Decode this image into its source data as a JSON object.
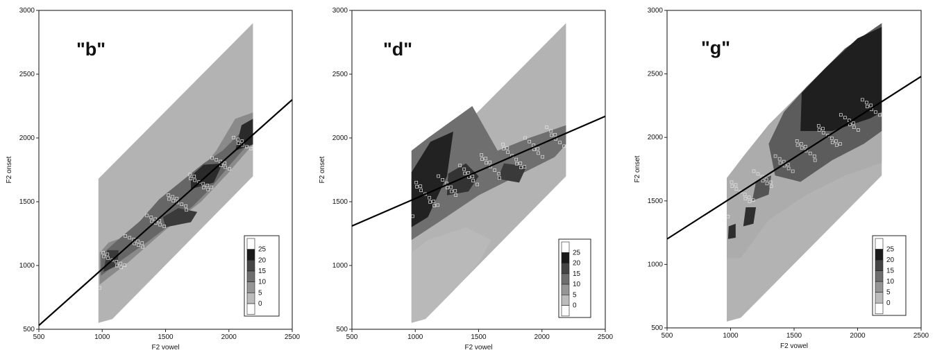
{
  "chart_data": [
    {
      "type": "contour",
      "title": "\"b\"",
      "xlabel": "F2 vowel",
      "ylabel": "F2 onset",
      "xlim": [
        500,
        2500
      ],
      "ylim": [
        500,
        3000
      ],
      "xticks": [
        "500",
        "1000",
        "1500",
        "2000",
        "2500"
      ],
      "yticks": [
        "500",
        "1000",
        "1500",
        "2000",
        "2500",
        "3000"
      ],
      "legend": {
        "position": "bottom-right",
        "levels": [
          "25",
          "20",
          "15",
          "10",
          "5",
          "0"
        ]
      },
      "regression_line": {
        "x": [
          500,
          2500
        ],
        "y": [
          530,
          2300
        ]
      }
    },
    {
      "type": "contour",
      "title": "\"d\"",
      "xlabel": "F2 vowel",
      "ylabel": "F2 onset",
      "xlim": [
        500,
        2500
      ],
      "ylim": [
        500,
        3000
      ],
      "xticks": [
        "500",
        "1000",
        "1500",
        "2000",
        "2500"
      ],
      "yticks": [
        "500",
        "1000",
        "1500",
        "2000",
        "2500",
        "3000"
      ],
      "legend": {
        "position": "bottom-right",
        "levels": [
          "25",
          "20",
          "15",
          "10",
          "5",
          "0"
        ]
      },
      "regression_line": {
        "x": [
          500,
          2500
        ],
        "y": [
          1310,
          2170
        ]
      }
    },
    {
      "type": "contour",
      "title": "\"g\"",
      "xlabel": "F2 vowel",
      "ylabel": "F2 onset",
      "xlim": [
        500,
        2500
      ],
      "ylim": [
        500,
        3000
      ],
      "xticks": [
        "500",
        "1000",
        "1500",
        "2000",
        "2500"
      ],
      "yticks": [
        "500",
        "1000",
        "1500",
        "2000",
        "2500",
        "3000"
      ],
      "legend": {
        "position": "bottom-right",
        "levels": [
          "25",
          "20",
          "15",
          "10",
          "5",
          "0"
        ]
      },
      "regression_line": {
        "x": [
          500,
          2500
        ],
        "y": [
          1200,
          2480
        ]
      }
    }
  ]
}
